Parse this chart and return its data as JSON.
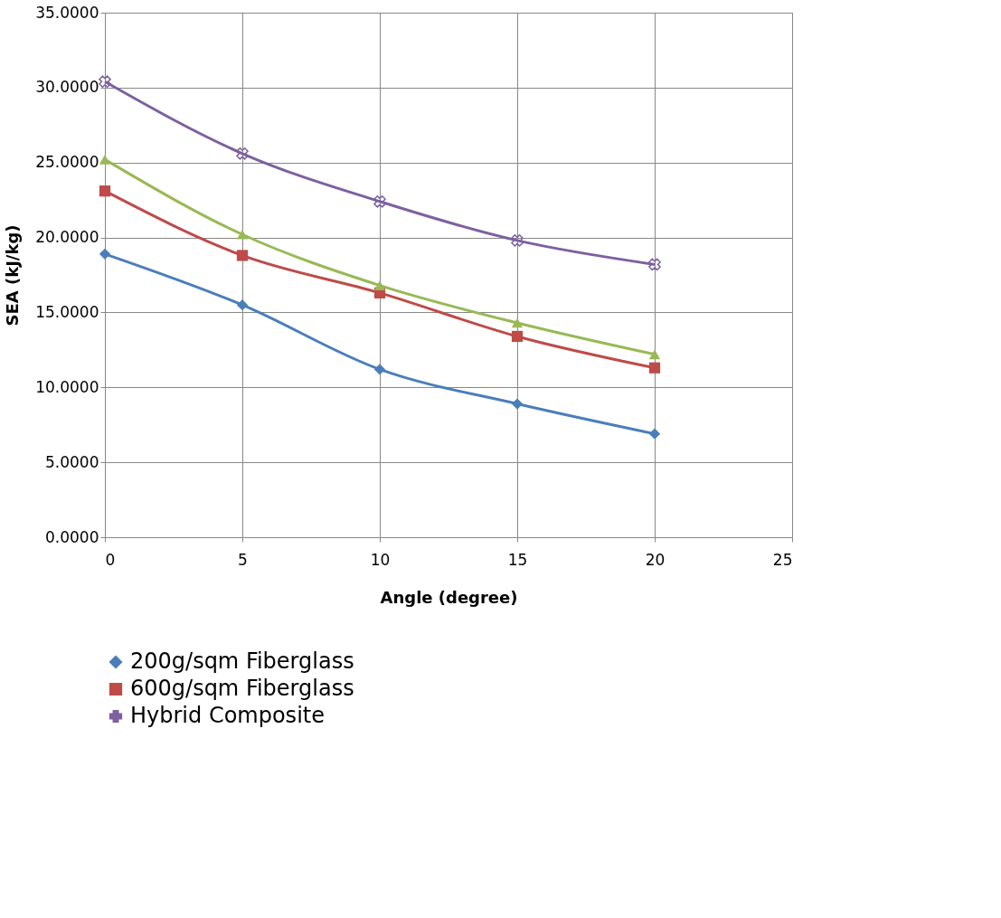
{
  "chart_data": {
    "type": "line",
    "xlabel": "Angle (degree)",
    "ylabel": "SEA (kJ/kg)",
    "x": [
      0,
      5,
      10,
      15,
      20
    ],
    "series": [
      {
        "name": "200g/sqm Fiberglass",
        "color": "#4a7ebb",
        "marker": "diamond",
        "values": [
          18.9,
          15.5,
          11.2,
          8.9,
          6.9
        ]
      },
      {
        "name": "600g/sqm Fiberglass",
        "color": "#be4b48",
        "marker": "square",
        "values": [
          23.1,
          18.8,
          16.3,
          13.4,
          11.3
        ]
      },
      {
        "color": "#98b954",
        "marker": "triangle",
        "values": [
          25.2,
          20.2,
          16.8,
          14.3,
          12.2
        ]
      },
      {
        "name": "Hybrid Composite",
        "color": "#7d60a0",
        "marker": "cross",
        "values": [
          30.4,
          25.6,
          22.4,
          19.8,
          18.2
        ]
      }
    ],
    "xlim": [
      0,
      25
    ],
    "xticks": [
      0,
      5,
      10,
      15,
      20,
      25
    ],
    "ylim": [
      0,
      35
    ],
    "yticks": [
      {
        "value": 0,
        "label": "0.0000"
      },
      {
        "value": 5,
        "label": "5.0000"
      },
      {
        "value": 10,
        "label": "10.0000"
      },
      {
        "value": 15,
        "label": "15.0000"
      },
      {
        "value": 20,
        "label": "20.0000"
      },
      {
        "value": 25,
        "label": "25.0000"
      },
      {
        "value": 30,
        "label": "30.0000"
      },
      {
        "value": 35,
        "label": "35.0000"
      }
    ],
    "grid": true,
    "legend": "bottom",
    "line_style": "solid"
  }
}
